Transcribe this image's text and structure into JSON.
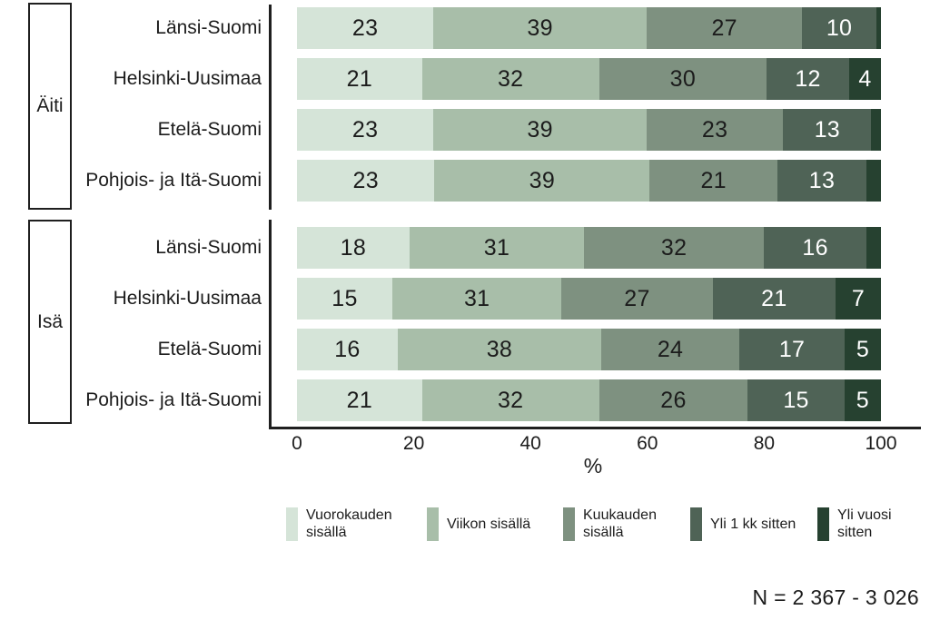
{
  "chart_data": {
    "type": "bar",
    "orientation": "horizontal",
    "stacked": true,
    "unit": "%",
    "x_axis": {
      "min": 0,
      "max": 100,
      "label": "%",
      "ticks": [
        "0",
        "20",
        "40",
        "60",
        "80",
        "100"
      ]
    },
    "series": [
      {
        "name": "Vuorokauden sisällä",
        "color": "#d5e4d8",
        "value_text_color": "#1c1c1c",
        "label_lines": [
          "Vuorokauden",
          "sisällä"
        ]
      },
      {
        "name": "Viikon sisällä",
        "color": "#a8bea9",
        "value_text_color": "#1c1c1c",
        "label_lines": [
          "Viikon sisällä"
        ]
      },
      {
        "name": "Kuukauden sisällä",
        "color": "#7e9180",
        "value_text_color": "#1c1c1c",
        "label_lines": [
          "Kuukauden",
          "sisällä"
        ]
      },
      {
        "name": "Yli 1 kk sitten",
        "color": "#4f6356",
        "value_text_color": "#ffffff",
        "label_lines": [
          "Yli 1 kk sitten"
        ]
      },
      {
        "name": "Yli vuosi sitten",
        "color": "#264130",
        "value_text_color": "#ffffff",
        "label_lines": [
          "Yli vuosi",
          "sitten"
        ]
      }
    ],
    "value_label_min": 4,
    "groups": [
      {
        "label": "Äiti",
        "rows": [
          {
            "label": "Länsi-Suomi",
            "values": [
              23,
              39,
              27,
              10,
              1
            ]
          },
          {
            "label": "Helsinki-Uusimaa",
            "values": [
              21,
              32,
              30,
              12,
              4
            ]
          },
          {
            "label": "Etelä-Suomi",
            "values": [
              23,
              39,
              23,
              13,
              2
            ]
          },
          {
            "label": "Pohjois- ja Itä-Suomi",
            "values": [
              23,
              39,
              21,
              13,
              3
            ]
          }
        ]
      },
      {
        "label": "Isä",
        "rows": [
          {
            "label": "Länsi-Suomi",
            "values": [
              18,
              31,
              32,
              16,
              3
            ]
          },
          {
            "label": "Helsinki-Uusimaa",
            "values": [
              15,
              31,
              27,
              21,
              7
            ]
          },
          {
            "label": "Etelä-Suomi",
            "values": [
              16,
              38,
              24,
              17,
              5
            ]
          },
          {
            "label": "Pohjois- ja Itä-Suomi",
            "values": [
              21,
              32,
              26,
              15,
              5
            ]
          }
        ]
      }
    ],
    "footnote": "N = 2 367 - 3 026"
  }
}
